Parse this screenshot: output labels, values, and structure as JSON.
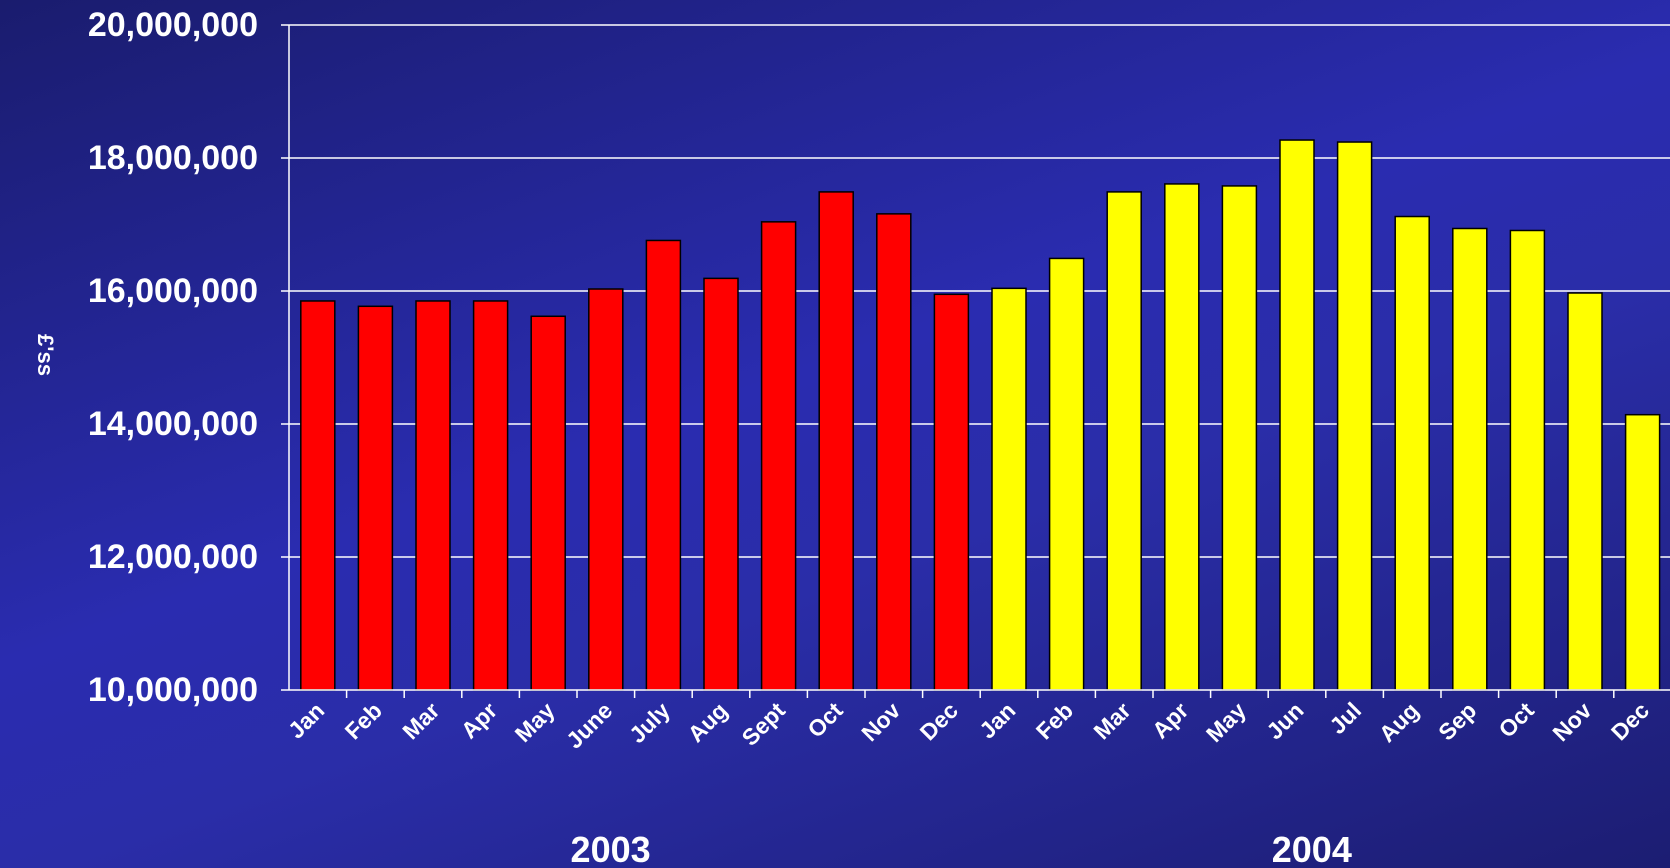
{
  "chart_data": {
    "type": "bar",
    "ylabel": "£'ss",
    "ylim": [
      10000000,
      20000000
    ],
    "yticks": [
      "10,000,000",
      "12,000,000",
      "14,000,000",
      "16,000,000",
      "18,000,000",
      "20,000,000"
    ],
    "ytick_values": [
      10000000,
      12000000,
      14000000,
      16000000,
      18000000,
      20000000
    ],
    "grid": true,
    "groups": [
      {
        "label": "2003",
        "color": "#ff0000",
        "categories": [
          "Jan",
          "Feb",
          "Mar",
          "Apr",
          "May",
          "June",
          "July",
          "Aug",
          "Sept",
          "Oct",
          "Nov",
          "Dec"
        ],
        "values": [
          15850000,
          15770000,
          15850000,
          15850000,
          15620000,
          16030000,
          16760000,
          16190000,
          17040000,
          17490000,
          17160000,
          15950000
        ]
      },
      {
        "label": "2004",
        "color": "#ffff00",
        "categories": [
          "Jan",
          "Feb",
          "Mar",
          "Apr",
          "May",
          "Jun",
          "Jul",
          "Aug",
          "Sep",
          "Oct",
          "Nov",
          "Dec"
        ],
        "values": [
          16040000,
          16490000,
          17490000,
          17610000,
          17580000,
          18270000,
          18240000,
          17120000,
          16940000,
          16910000,
          15970000,
          14140000
        ]
      }
    ]
  }
}
